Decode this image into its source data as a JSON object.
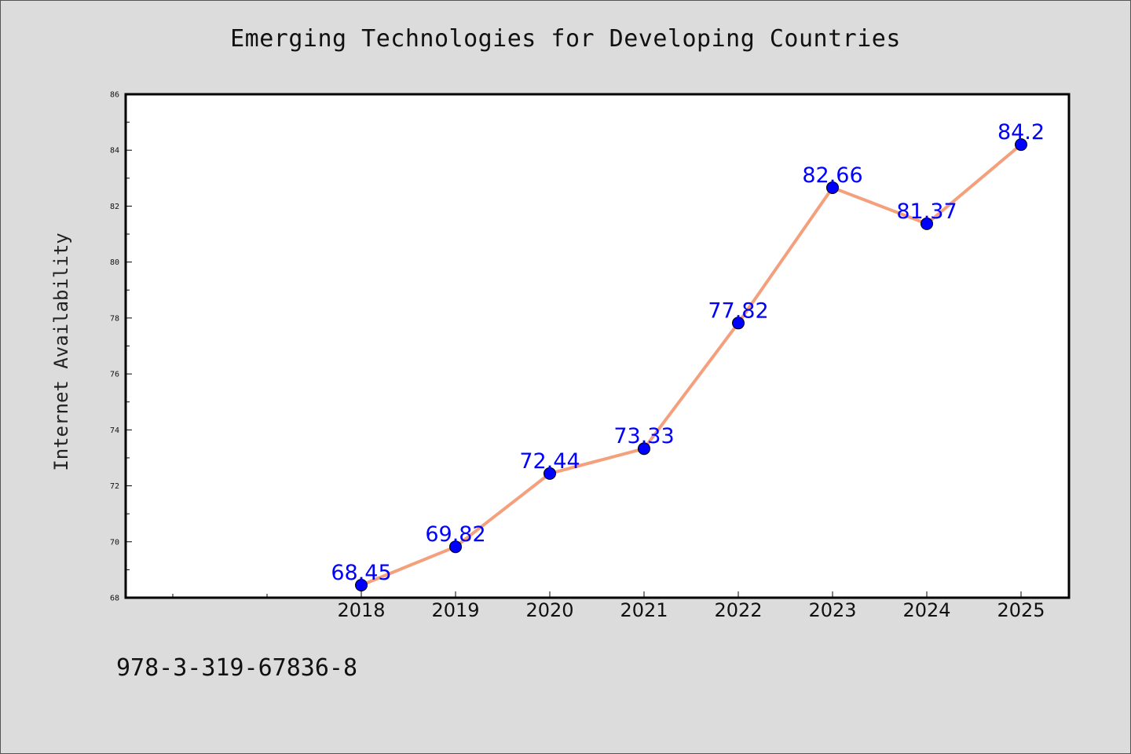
{
  "page": {
    "isbn_text": "978-3-319-67836-8"
  },
  "chart_data": {
    "type": "line",
    "title": "Emerging Technologies for Developing Countries",
    "xlabel": "",
    "ylabel": "Internet Availability",
    "categories": [
      "2018",
      "2019",
      "2020",
      "2021",
      "2022",
      "2023",
      "2024",
      "2025"
    ],
    "values": [
      68.45,
      69.82,
      72.44,
      73.33,
      77.82,
      82.66,
      81.37,
      84.2
    ],
    "value_labels": [
      "68.45",
      "69.82",
      "72.44",
      "73.33",
      "77.82",
      "82.66",
      "81.37",
      "84.2"
    ],
    "ylim": [
      68,
      86
    ],
    "y_ticks": [
      68,
      70,
      72,
      74,
      76,
      78,
      80,
      82,
      84,
      86
    ],
    "grid": false,
    "legend": "none",
    "colors": {
      "line": "#f4a07c",
      "marker": "#0000ff",
      "data_label": "#0000ff",
      "background": "#dcdcdc",
      "plot_area": "#ffffff"
    }
  }
}
